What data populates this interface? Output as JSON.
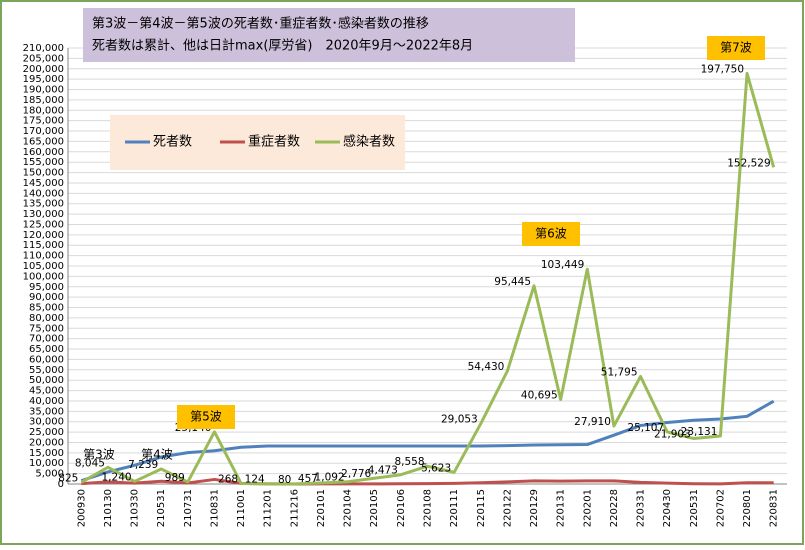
{
  "chart_data": {
    "type": "line",
    "title": "第3波－第4波－第5波の死者数･重症者数･感染者数の推移",
    "subtitle": "死者数は累計、他は日計max(厚労省)　2020年9月～2022年8月",
    "categories": [
      "200930",
      "210130",
      "210330",
      "210531",
      "210731",
      "210831",
      "211001",
      "211201",
      "211216",
      "220101",
      "220104",
      "220105",
      "220106",
      "220108",
      "220111",
      "220115",
      "220122",
      "220129",
      "220131",
      "220201",
      "220228",
      "220331",
      "220430",
      "220531",
      "220702",
      "220801",
      "220831"
    ],
    "series": [
      {
        "name": "死者数",
        "color": "#4f81bd",
        "values": [
          1600,
          5800,
          9000,
          13000,
          15100,
          16000,
          17700,
          18300,
          18300,
          18300,
          18300,
          18300,
          18300,
          18300,
          18300,
          18300,
          18500,
          18800,
          18900,
          19000,
          23500,
          28200,
          29600,
          30700,
          31300,
          32600,
          39900
        ]
      },
      {
        "name": "重症者数",
        "color": "#c0504d",
        "values": [
          200,
          1000,
          400,
          1300,
          500,
          2200,
          300,
          50,
          30,
          50,
          60,
          80,
          100,
          200,
          300,
          600,
          1000,
          1500,
          1400,
          1500,
          1500,
          800,
          400,
          100,
          80,
          600,
          600
        ]
      },
      {
        "name": "感染者数",
        "color": "#9bbb59",
        "values": [
          825,
          8045,
          1240,
          7239,
          989,
          25140,
          268,
          124,
          80,
          457,
          1092,
          2776,
          4473,
          8558,
          5623,
          29053,
          54430,
          95445,
          40695,
          103449,
          27910,
          51795,
          25107,
          21903,
          23131,
          197750,
          152529
        ],
        "value_labels": [
          "825",
          "8,045",
          "1,240",
          "7,239",
          "989",
          "25,140",
          "268",
          "124",
          "80",
          "457",
          "1,092",
          "2,776",
          "4,473",
          "8,558",
          "5,623",
          "29,053",
          "54,430",
          "95,445",
          "40,695",
          "103,449",
          "27,910",
          "51,795",
          "25,107",
          "21,903",
          "23,131",
          "197,750",
          "152,529"
        ]
      }
    ],
    "annotations": [
      "第3波",
      "第4波",
      "第5波",
      "第6波",
      "第7波"
    ],
    "ylim": [
      0,
      210000
    ],
    "yticks": [
      0,
      {
        "value": 5000,
        "label": "5,000"
      },
      {
        "value": 10000,
        "label": "10,000"
      },
      {
        "value": 15000,
        "label": "15,000"
      },
      {
        "value": 20000,
        "label": "20,000"
      },
      {
        "value": 25000,
        "label": "25,000"
      },
      {
        "value": 30000,
        "label": "30,000"
      },
      {
        "value": 35000,
        "label": "35,000"
      },
      {
        "value": 40000,
        "label": "40,000"
      },
      {
        "value": 45000,
        "label": "45,000"
      },
      {
        "value": 50000,
        "label": "50,000"
      },
      {
        "value": 55000,
        "label": "55,000"
      },
      {
        "value": 60000,
        "label": "60,000"
      },
      {
        "value": 65000,
        "label": "65,000"
      },
      {
        "value": 70000,
        "label": "70,000"
      },
      {
        "value": 75000,
        "label": "75,000"
      },
      {
        "value": 80000,
        "label": "80,000"
      },
      {
        "value": 85000,
        "label": "85,000"
      },
      {
        "value": 90000,
        "label": "90,000"
      },
      {
        "value": 95000,
        "label": "95,000"
      },
      {
        "value": 100000,
        "label": "100,000"
      },
      {
        "value": 105000,
        "label": "105,000"
      },
      {
        "value": 110000,
        "label": "110,000"
      },
      {
        "value": 115000,
        "label": "115,000"
      },
      {
        "value": 120000,
        "label": "120,000"
      },
      {
        "value": 125000,
        "label": "125,000"
      },
      {
        "value": 130000,
        "label": "130,000"
      },
      {
        "value": 135000,
        "label": "135,000"
      },
      {
        "value": 140000,
        "label": "140,000"
      },
      {
        "value": 145000,
        "label": "145,000"
      },
      {
        "value": 150000,
        "label": "150,000"
      },
      {
        "value": 155000,
        "label": "155,000"
      },
      {
        "value": 160000,
        "label": "160,000"
      },
      {
        "value": 165000,
        "label": "165,000"
      },
      {
        "value": 170000,
        "label": "170,000"
      },
      {
        "value": 175000,
        "label": "175,000"
      },
      {
        "value": 180000,
        "label": "180,000"
      },
      {
        "value": 185000,
        "label": "185,000"
      },
      {
        "value": 190000,
        "label": "190,000"
      },
      {
        "value": 195000,
        "label": "195,000"
      },
      {
        "value": 200000,
        "label": "200,000"
      },
      {
        "value": 205000,
        "label": "205,000"
      },
      {
        "value": 210000,
        "label": "210,000"
      }
    ],
    "grid": true
  }
}
